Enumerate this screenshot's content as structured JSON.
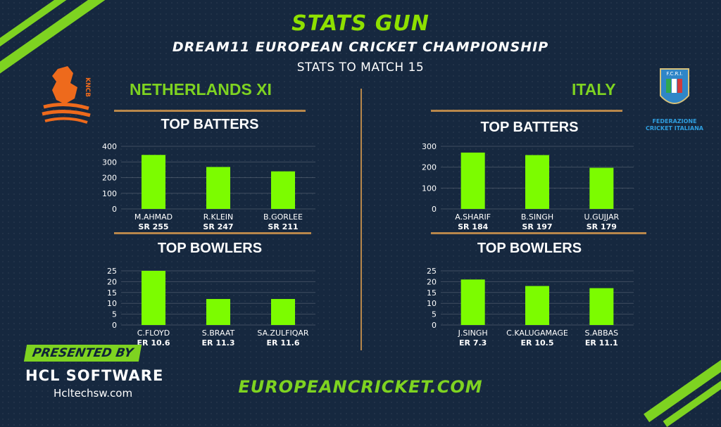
{
  "header": {
    "brand": "STATS GUN",
    "title": "DREAM11 EUROPEAN CRICKET CHAMPIONSHIP",
    "subtitle": "STATS TO MATCH 15"
  },
  "teams": {
    "left": {
      "name": "NETHERLANDS XI",
      "logo_text": "KNCB"
    },
    "right": {
      "name": "ITALY",
      "logo_text": "F.C.R.I.",
      "logo_caption_1": "FEDERAZIONE",
      "logo_caption_2": "CRICKET ITALIANA"
    }
  },
  "sections": {
    "batters": "TOP BATTERS",
    "bowlers": "TOP BOWLERS"
  },
  "footer": {
    "presented_by": "PRESENTED BY",
    "sponsor": "HCL SOFTWARE",
    "sponsor_site": "Hcltechsw.com",
    "website": "EUROPEANCRICKET.COM"
  },
  "colors": {
    "accent": "#7ed321",
    "bar": "#7cfc00",
    "divider": "#b8874b",
    "background": "#16283f"
  },
  "chart_data": [
    {
      "id": "nl-batters",
      "type": "bar",
      "title": "TOP BATTERS",
      "categories": [
        "M.AHMAD",
        "R.KLEIN",
        "B.GORLEE"
      ],
      "values": [
        345,
        268,
        240
      ],
      "sublabels": [
        "SR 255",
        "SR 247",
        "SR 211"
      ],
      "yticks": [
        0,
        100,
        200,
        300,
        400
      ],
      "ylim": [
        0,
        400
      ]
    },
    {
      "id": "nl-bowlers",
      "type": "bar",
      "title": "TOP BOWLERS",
      "categories": [
        "C.FLOYD",
        "S.BRAAT",
        "SA.ZULFIQAR"
      ],
      "values": [
        25,
        12,
        12
      ],
      "sublabels": [
        "ER 10.6",
        "ER 11.3",
        "ER 11.6"
      ],
      "yticks": [
        0,
        5,
        10,
        15,
        20,
        25
      ],
      "ylim": [
        0,
        25
      ]
    },
    {
      "id": "it-batters",
      "type": "bar",
      "title": "TOP BATTERS",
      "categories": [
        "A.SHARIF",
        "B.SINGH",
        "U.GUJJAR"
      ],
      "values": [
        270,
        258,
        197
      ],
      "sublabels": [
        "SR 184",
        "SR 197",
        "SR 179"
      ],
      "yticks": [
        0,
        100,
        200,
        300
      ],
      "ylim": [
        0,
        300
      ]
    },
    {
      "id": "it-bowlers",
      "type": "bar",
      "title": "TOP BOWLERS",
      "categories": [
        "J.SINGH",
        "C.KALUGAMAGE",
        "S.ABBAS"
      ],
      "values": [
        21,
        18,
        17
      ],
      "sublabels": [
        "ER 7.3",
        "ER 10.5",
        "ER 11.1"
      ],
      "yticks": [
        0,
        5,
        10,
        15,
        20,
        25
      ],
      "ylim": [
        0,
        25
      ]
    }
  ]
}
